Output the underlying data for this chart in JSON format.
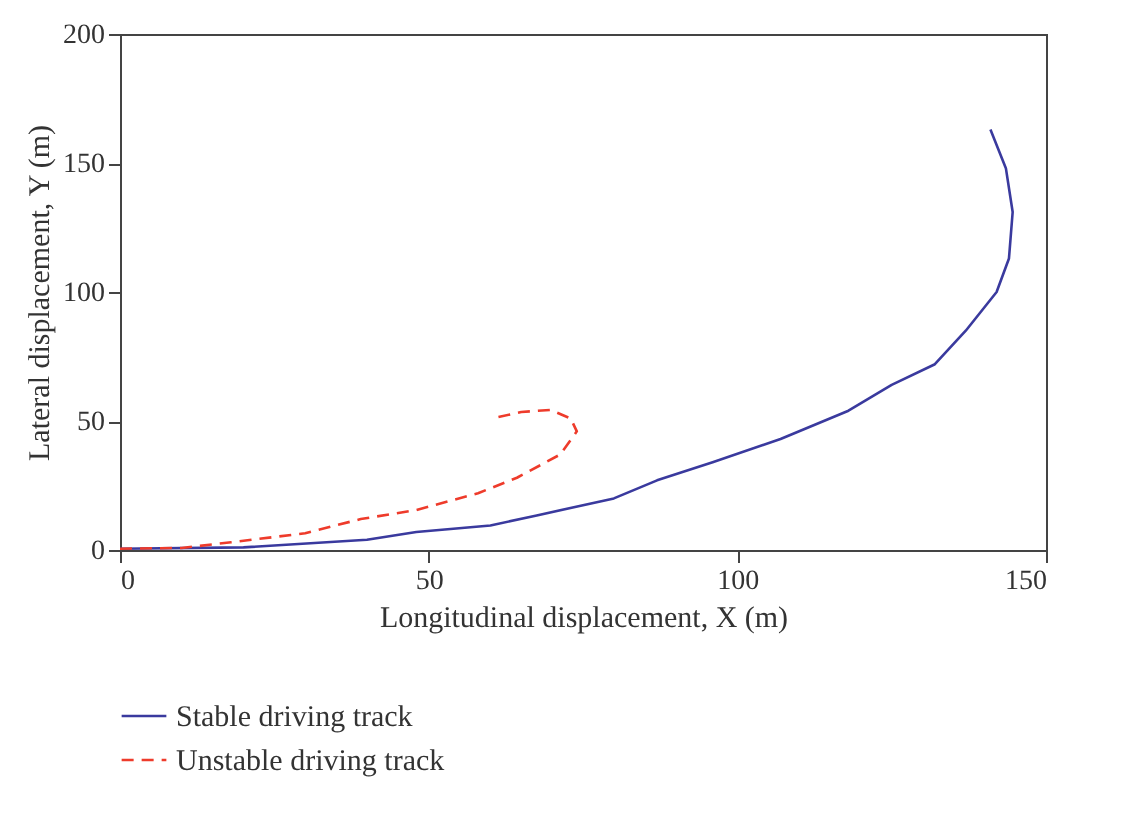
{
  "chart_data": {
    "type": "line",
    "xlabel": "Longitudinal displacement, X (m)",
    "ylabel": "Lateral displacement, Y (m)",
    "xlim": [
      0,
      150
    ],
    "xticks": [
      0,
      50,
      100,
      150
    ],
    "ylim": [
      0,
      200
    ],
    "yticks": [
      0,
      50,
      100,
      150,
      200
    ],
    "grid": false,
    "legend": "bottom",
    "marker": "none",
    "series": [
      {
        "name": "Stable driving track",
        "color": "#3a3a9e",
        "line_style": "solid",
        "x": [
          0,
          20,
          40,
          48,
          60,
          67.5,
          80,
          87,
          96,
          107,
          118,
          125,
          132,
          137,
          142,
          144,
          144.6,
          143.5,
          141
        ],
        "values": [
          0.5,
          1,
          4,
          7,
          9.5,
          13.4,
          20,
          27,
          34,
          43,
          54,
          64,
          72,
          85,
          100,
          113,
          131,
          148,
          163
        ]
      },
      {
        "name": "Unstable driving track",
        "color": "#ee3b2b",
        "line_style": "dashed",
        "x": [
          0,
          10,
          18,
          30,
          39,
          48,
          58,
          64.3,
          71.3,
          74,
          73,
          69.7,
          65,
          61
        ],
        "values": [
          0.5,
          0.8,
          3,
          6.5,
          12,
          15.5,
          22,
          28,
          37,
          46,
          51,
          54.3,
          53.5,
          51.4
        ]
      }
    ]
  }
}
